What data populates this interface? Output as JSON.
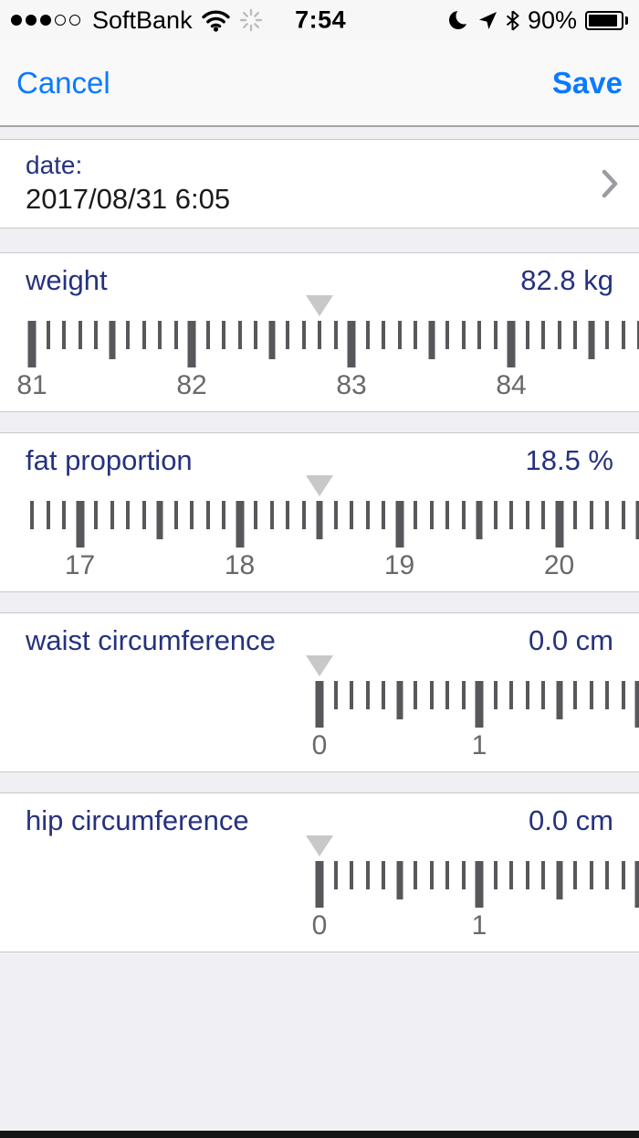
{
  "status_bar": {
    "carrier": "SoftBank",
    "time": "7:54",
    "battery_percent": "90%",
    "signal_filled_dots": 3,
    "signal_total_dots": 5
  },
  "nav_bar": {
    "cancel_label": "Cancel",
    "save_label": "Save"
  },
  "date_row": {
    "label": "date:",
    "value": "2017/08/31 6:05"
  },
  "metrics": [
    {
      "id": "weight",
      "label": "weight",
      "display_value": "82.8 kg",
      "value": 82.8,
      "unit": "kg",
      "ruler": {
        "start": 81.0,
        "end": 84.8,
        "step": 0.1,
        "major_labels": [
          81,
          82,
          83,
          84
        ]
      }
    },
    {
      "id": "fat-proportion",
      "label": "fat proportion",
      "display_value": "18.5 %",
      "value": 18.5,
      "unit": "%",
      "ruler": {
        "start": 16.7,
        "end": 20.5,
        "step": 0.1,
        "major_labels": [
          17,
          18,
          19,
          20
        ]
      }
    },
    {
      "id": "waist-circumference",
      "label": "waist circumference",
      "display_value": "0.0 cm",
      "value": 0.0,
      "unit": "cm",
      "ruler": {
        "start": 0.0,
        "end": 2.0,
        "step": 0.1,
        "major_labels": [
          0,
          1
        ]
      }
    },
    {
      "id": "hip-circumference",
      "label": "hip circumference",
      "display_value": "0.0 cm",
      "value": 0.0,
      "unit": "cm",
      "ruler": {
        "start": 0.0,
        "end": 2.0,
        "step": 0.1,
        "major_labels": [
          0,
          1
        ]
      }
    }
  ],
  "colors": {
    "accent_blue": "#0a7aff",
    "label_navy": "#26327e",
    "tick_gray": "#58585c",
    "pointer_gray": "#c8c8ca",
    "background_gray": "#efeff4"
  }
}
